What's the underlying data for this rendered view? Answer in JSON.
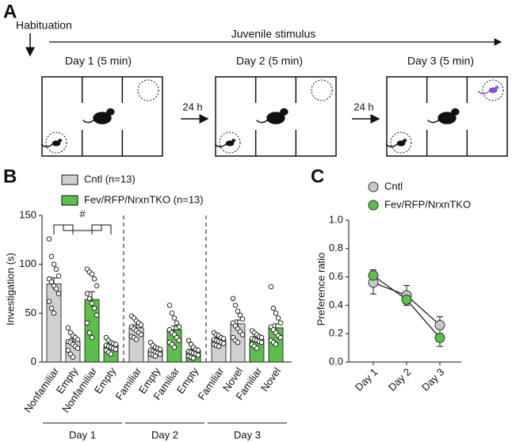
{
  "panel_labels": [
    "A",
    "B",
    "C"
  ],
  "panel_a": {
    "habituation": "Habituation",
    "stimulus": "Juvenile stimulus",
    "days": [
      "Day 1 (5 min)",
      "Day 2 (5 min)",
      "Day 3 (5 min)"
    ],
    "intervals": [
      "24 h",
      "24 h"
    ]
  },
  "chart_data": [
    {
      "type": "bar",
      "ylabel": "Investigation (s)",
      "ylim": [
        0,
        150
      ],
      "yticks": [
        0,
        50,
        100,
        150
      ],
      "annotation": "#",
      "categories": [
        "Nonfamiliar",
        "Empty",
        "Nonfamiliar",
        "Empty",
        "Familiar",
        "Empty",
        "Familiar",
        "Empty",
        "Familiar",
        "Novel",
        "Familiar",
        "Novel"
      ],
      "groups": [
        "Day 1",
        "Day 2",
        "Day 3"
      ],
      "series": [
        {
          "name": "Cntl (n=13)",
          "color": "#d0d0d0",
          "values": [
            80,
            21,
            null,
            null,
            35,
            12,
            null,
            null,
            23,
            39,
            null,
            null
          ],
          "errors": [
            6,
            3,
            null,
            null,
            3,
            1,
            null,
            null,
            2,
            4,
            null,
            null
          ],
          "points": [
            [
              126,
              108,
              100,
              95,
              88,
              85,
              82,
              78,
              75,
              70,
              62,
              55,
              50
            ],
            [
              35,
              30,
              27,
              25,
              23,
              21,
              20,
              18,
              16,
              14,
              12,
              8,
              5
            ],
            null,
            null,
            [
              47,
              45,
              42,
              40,
              38,
              36,
              34,
              32,
              30,
              28,
              26,
              25,
              23
            ],
            [
              20,
              17,
              15,
              14,
              13,
              12,
              11,
              10,
              9,
              8,
              8,
              7,
              6
            ],
            null,
            null,
            [
              30,
              28,
              27,
              25,
              24,
              23,
              22,
              21,
              20,
              19,
              18,
              17,
              16
            ],
            [
              65,
              58,
              52,
              48,
              44,
              40,
              37,
              34,
              31,
              28,
              25,
              22,
              20
            ],
            null,
            null
          ]
        },
        {
          "name": "Fev/RFP/NrxnTKO (n=13)",
          "color": "#5cbf4a",
          "values": [
            null,
            null,
            64,
            17,
            null,
            null,
            33,
            11,
            null,
            null,
            23,
            35
          ],
          "errors": [
            null,
            null,
            8,
            2,
            null,
            null,
            4,
            2,
            null,
            null,
            3,
            4
          ],
          "points": [
            null,
            null,
            [
              95,
              92,
              90,
              85,
              78,
              70,
              65,
              60,
              55,
              48,
              40,
              30,
              25
            ],
            [
              25,
              22,
              20,
              19,
              18,
              17,
              16,
              15,
              14,
              13,
              12,
              10,
              8
            ],
            null,
            null,
            [
              58,
              50,
              45,
              40,
              36,
              33,
              30,
              28,
              25,
              22,
              20,
              18,
              15
            ],
            [
              22,
              18,
              15,
              13,
              12,
              11,
              10,
              9,
              8,
              7,
              6,
              5,
              4
            ],
            null,
            null,
            [
              32,
              30,
              28,
              26,
              25,
              24,
              23,
              22,
              21,
              20,
              18,
              16,
              14
            ],
            [
              77,
              55,
              50,
              45,
              40,
              36,
              33,
              30,
              27,
              25,
              22,
              20,
              18
            ]
          ]
        }
      ]
    },
    {
      "type": "line",
      "ylabel": "Preference ratio",
      "ylim": [
        0,
        1
      ],
      "yticks": [
        {
          "value": 0,
          "label": "0.0"
        },
        0.2,
        0.4,
        0.6,
        0.8,
        {
          "value": 1,
          "label": "1.0"
        }
      ],
      "categories": [
        "Day 1",
        "Day 2",
        "Day 3"
      ],
      "series": [
        {
          "name": "Cntl",
          "color": "#c8c8c8",
          "values": [
            0.56,
            0.47,
            0.26
          ],
          "errors": [
            0.08,
            0.07,
            0.06
          ]
        },
        {
          "name": "Fev/RFP/NrxnTKO",
          "color": "#5cbf4a",
          "values": [
            0.61,
            0.44,
            0.17
          ],
          "errors": [
            0.04,
            0.03,
            0.06
          ]
        }
      ]
    }
  ]
}
